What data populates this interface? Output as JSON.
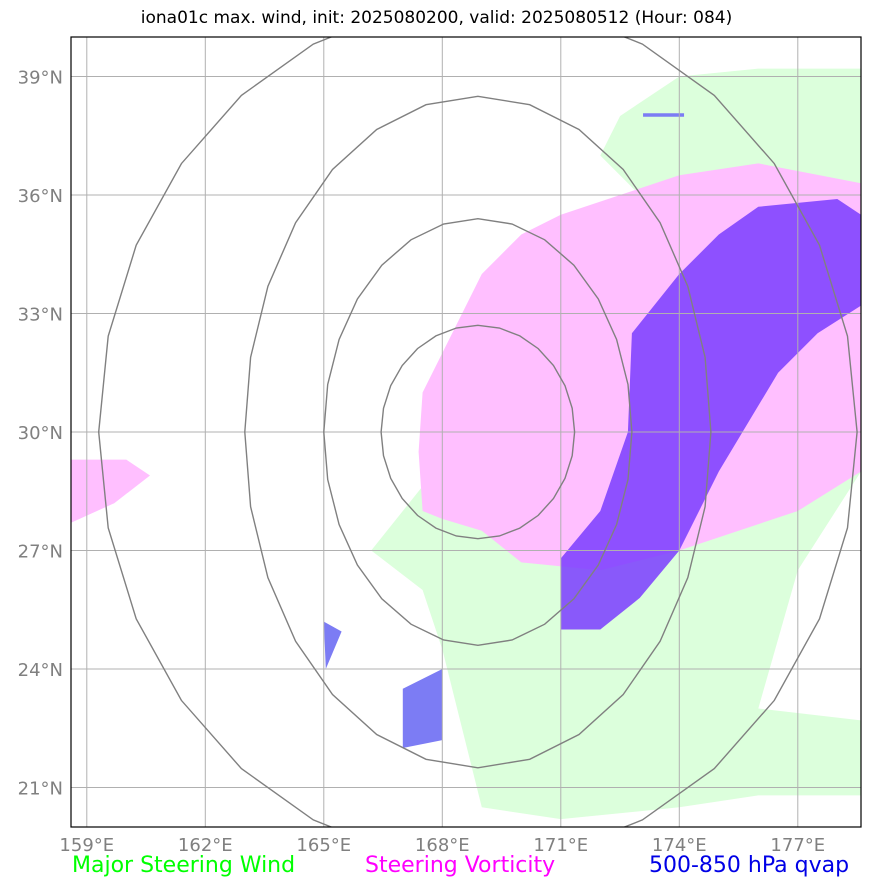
{
  "title": "iona01c max. wind, init: 2025080200, valid: 2025080512 (Hour: 084)",
  "map": {
    "lon_range": [
      158.6,
      178.6
    ],
    "lat_range": [
      20.0,
      40.0
    ],
    "lon_ticks": [
      159,
      162,
      165,
      168,
      171,
      174,
      177
    ],
    "lat_ticks": [
      21,
      24,
      27,
      30,
      33,
      36,
      39
    ],
    "lon_tick_labels": [
      "159°E",
      "162°E",
      "165°E",
      "168°E",
      "171°E",
      "174°E",
      "177°E"
    ],
    "lat_tick_labels": [
      "21°N",
      "24°N",
      "27°N",
      "30°N",
      "33°N",
      "36°N",
      "39°N"
    ],
    "grid": true,
    "center": {
      "lon": 168.9,
      "lat": 30.0
    },
    "rings": [
      {
        "dlon": 2.45,
        "dlat": 2.7
      },
      {
        "dlon": 3.9,
        "dlat": 5.4
      },
      {
        "dlon": 5.9,
        "dlat": 8.5
      },
      {
        "dlon": 9.6,
        "dlat": 10.9
      }
    ],
    "colors": {
      "wind": "#dcffdc",
      "vorticity": "#ffbfff",
      "overlap": "#dcbcdc",
      "qvap": "#7a3cff",
      "qvap_deep": "#5e3be0",
      "qvap_south": "#5b7ee0",
      "qvap_small": "#7c7cf4",
      "ring": "#808080",
      "grid": "#b0b0b0"
    },
    "wind_region": [
      [
        174,
        39
      ],
      [
        176,
        39.2
      ],
      [
        178.6,
        39.2
      ],
      [
        178.6,
        29
      ],
      [
        177,
        26.5
      ],
      [
        176,
        23
      ],
      [
        178.6,
        22.7
      ],
      [
        178.6,
        20.8
      ],
      [
        176,
        20.8
      ],
      [
        174,
        20.5
      ],
      [
        171,
        20.2
      ],
      [
        169,
        20.5
      ],
      [
        168,
        24.5
      ],
      [
        167.5,
        26
      ],
      [
        166.2,
        27
      ],
      [
        167,
        28
      ],
      [
        167.8,
        29
      ],
      [
        169,
        29.5
      ],
      [
        171,
        33
      ],
      [
        173,
        36
      ],
      [
        172,
        37
      ],
      [
        172.5,
        38
      ]
    ],
    "vorticity_main": [
      [
        167.5,
        28
      ],
      [
        167.4,
        29.5
      ],
      [
        167.5,
        31
      ],
      [
        168.5,
        33
      ],
      [
        169,
        34
      ],
      [
        170,
        35
      ],
      [
        171,
        35.5
      ],
      [
        172.5,
        36
      ],
      [
        174,
        36.5
      ],
      [
        176,
        36.8
      ],
      [
        178.6,
        36.3
      ],
      [
        178.6,
        29
      ],
      [
        177,
        28
      ],
      [
        174,
        27
      ],
      [
        172,
        26.5
      ],
      [
        170,
        26.7
      ],
      [
        169,
        27.5
      ],
      [
        168,
        27.8
      ]
    ],
    "vorticity_west": [
      [
        158.6,
        29.3
      ],
      [
        160,
        29.3
      ],
      [
        160.6,
        28.9
      ],
      [
        159.7,
        28.2
      ],
      [
        158.6,
        27.7
      ]
    ],
    "qvap_main": [
      [
        171,
        26.8
      ],
      [
        172,
        28
      ],
      [
        172.7,
        30
      ],
      [
        172.8,
        32.5
      ],
      [
        174,
        34
      ],
      [
        175,
        35
      ],
      [
        176,
        35.7
      ],
      [
        178,
        35.9
      ],
      [
        178.6,
        35.5
      ],
      [
        178.6,
        33.2
      ],
      [
        177.5,
        32.5
      ],
      [
        176.5,
        31.5
      ],
      [
        175,
        29
      ],
      [
        174,
        27
      ],
      [
        173,
        25.8
      ],
      [
        172,
        25
      ],
      [
        171,
        25
      ]
    ],
    "qvap_small_1": [
      [
        165,
        25.2
      ],
      [
        165.45,
        24.95
      ],
      [
        165.05,
        24.0
      ]
    ],
    "qvap_small_2": [
      [
        167,
        23.5
      ],
      [
        168,
        24.0
      ],
      [
        168,
        22.2
      ],
      [
        167,
        22.0
      ]
    ],
    "qvap_small_3": [
      [
        173.1,
        38.05
      ],
      [
        174.1,
        38.05
      ],
      [
        174.1,
        38.0
      ],
      [
        173.1,
        38.0
      ]
    ]
  },
  "legend": {
    "wind": "Major Steering Wind",
    "vorticity": "Steering Vorticity",
    "qvap": "500-850 hPa qvap"
  }
}
